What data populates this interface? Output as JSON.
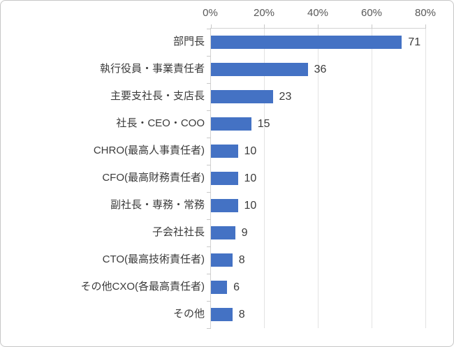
{
  "chart_data": {
    "type": "bar",
    "orientation": "horizontal",
    "title": "",
    "xlabel": "",
    "ylabel": "",
    "categories": [
      "部門長",
      "執行役員・事業責任者",
      "主要支社長・支店長",
      "社長・CEO・COO",
      "CHRO(最高人事責任者)",
      "CFO(最高財務責任者)",
      "副社長・専務・常務",
      "子会社社長",
      "CTO(最高技術責任者)",
      "その他CXO(各最高責任者)",
      "その他"
    ],
    "values": [
      71,
      36,
      23,
      15,
      10,
      10,
      10,
      9,
      8,
      6,
      8
    ],
    "data_labels": [
      71,
      36,
      23,
      15,
      10,
      10,
      10,
      9,
      8,
      6,
      8
    ],
    "x_ticks": [
      "0%",
      "20%",
      "40%",
      "60%",
      "80%"
    ],
    "x_tick_values": [
      0,
      20,
      40,
      60,
      80
    ],
    "xlim": [
      0,
      80
    ],
    "grid": "vertical",
    "legend": "none",
    "data_label_position": "outside-end",
    "colors": {
      "bar": "#4472c4",
      "gridline": "#e2e2e2",
      "axis_line": "#d2d2d2",
      "axis_tick_label": "#595959",
      "category_label": "#3b3b3b",
      "value_label": "#3b3b3b"
    }
  }
}
